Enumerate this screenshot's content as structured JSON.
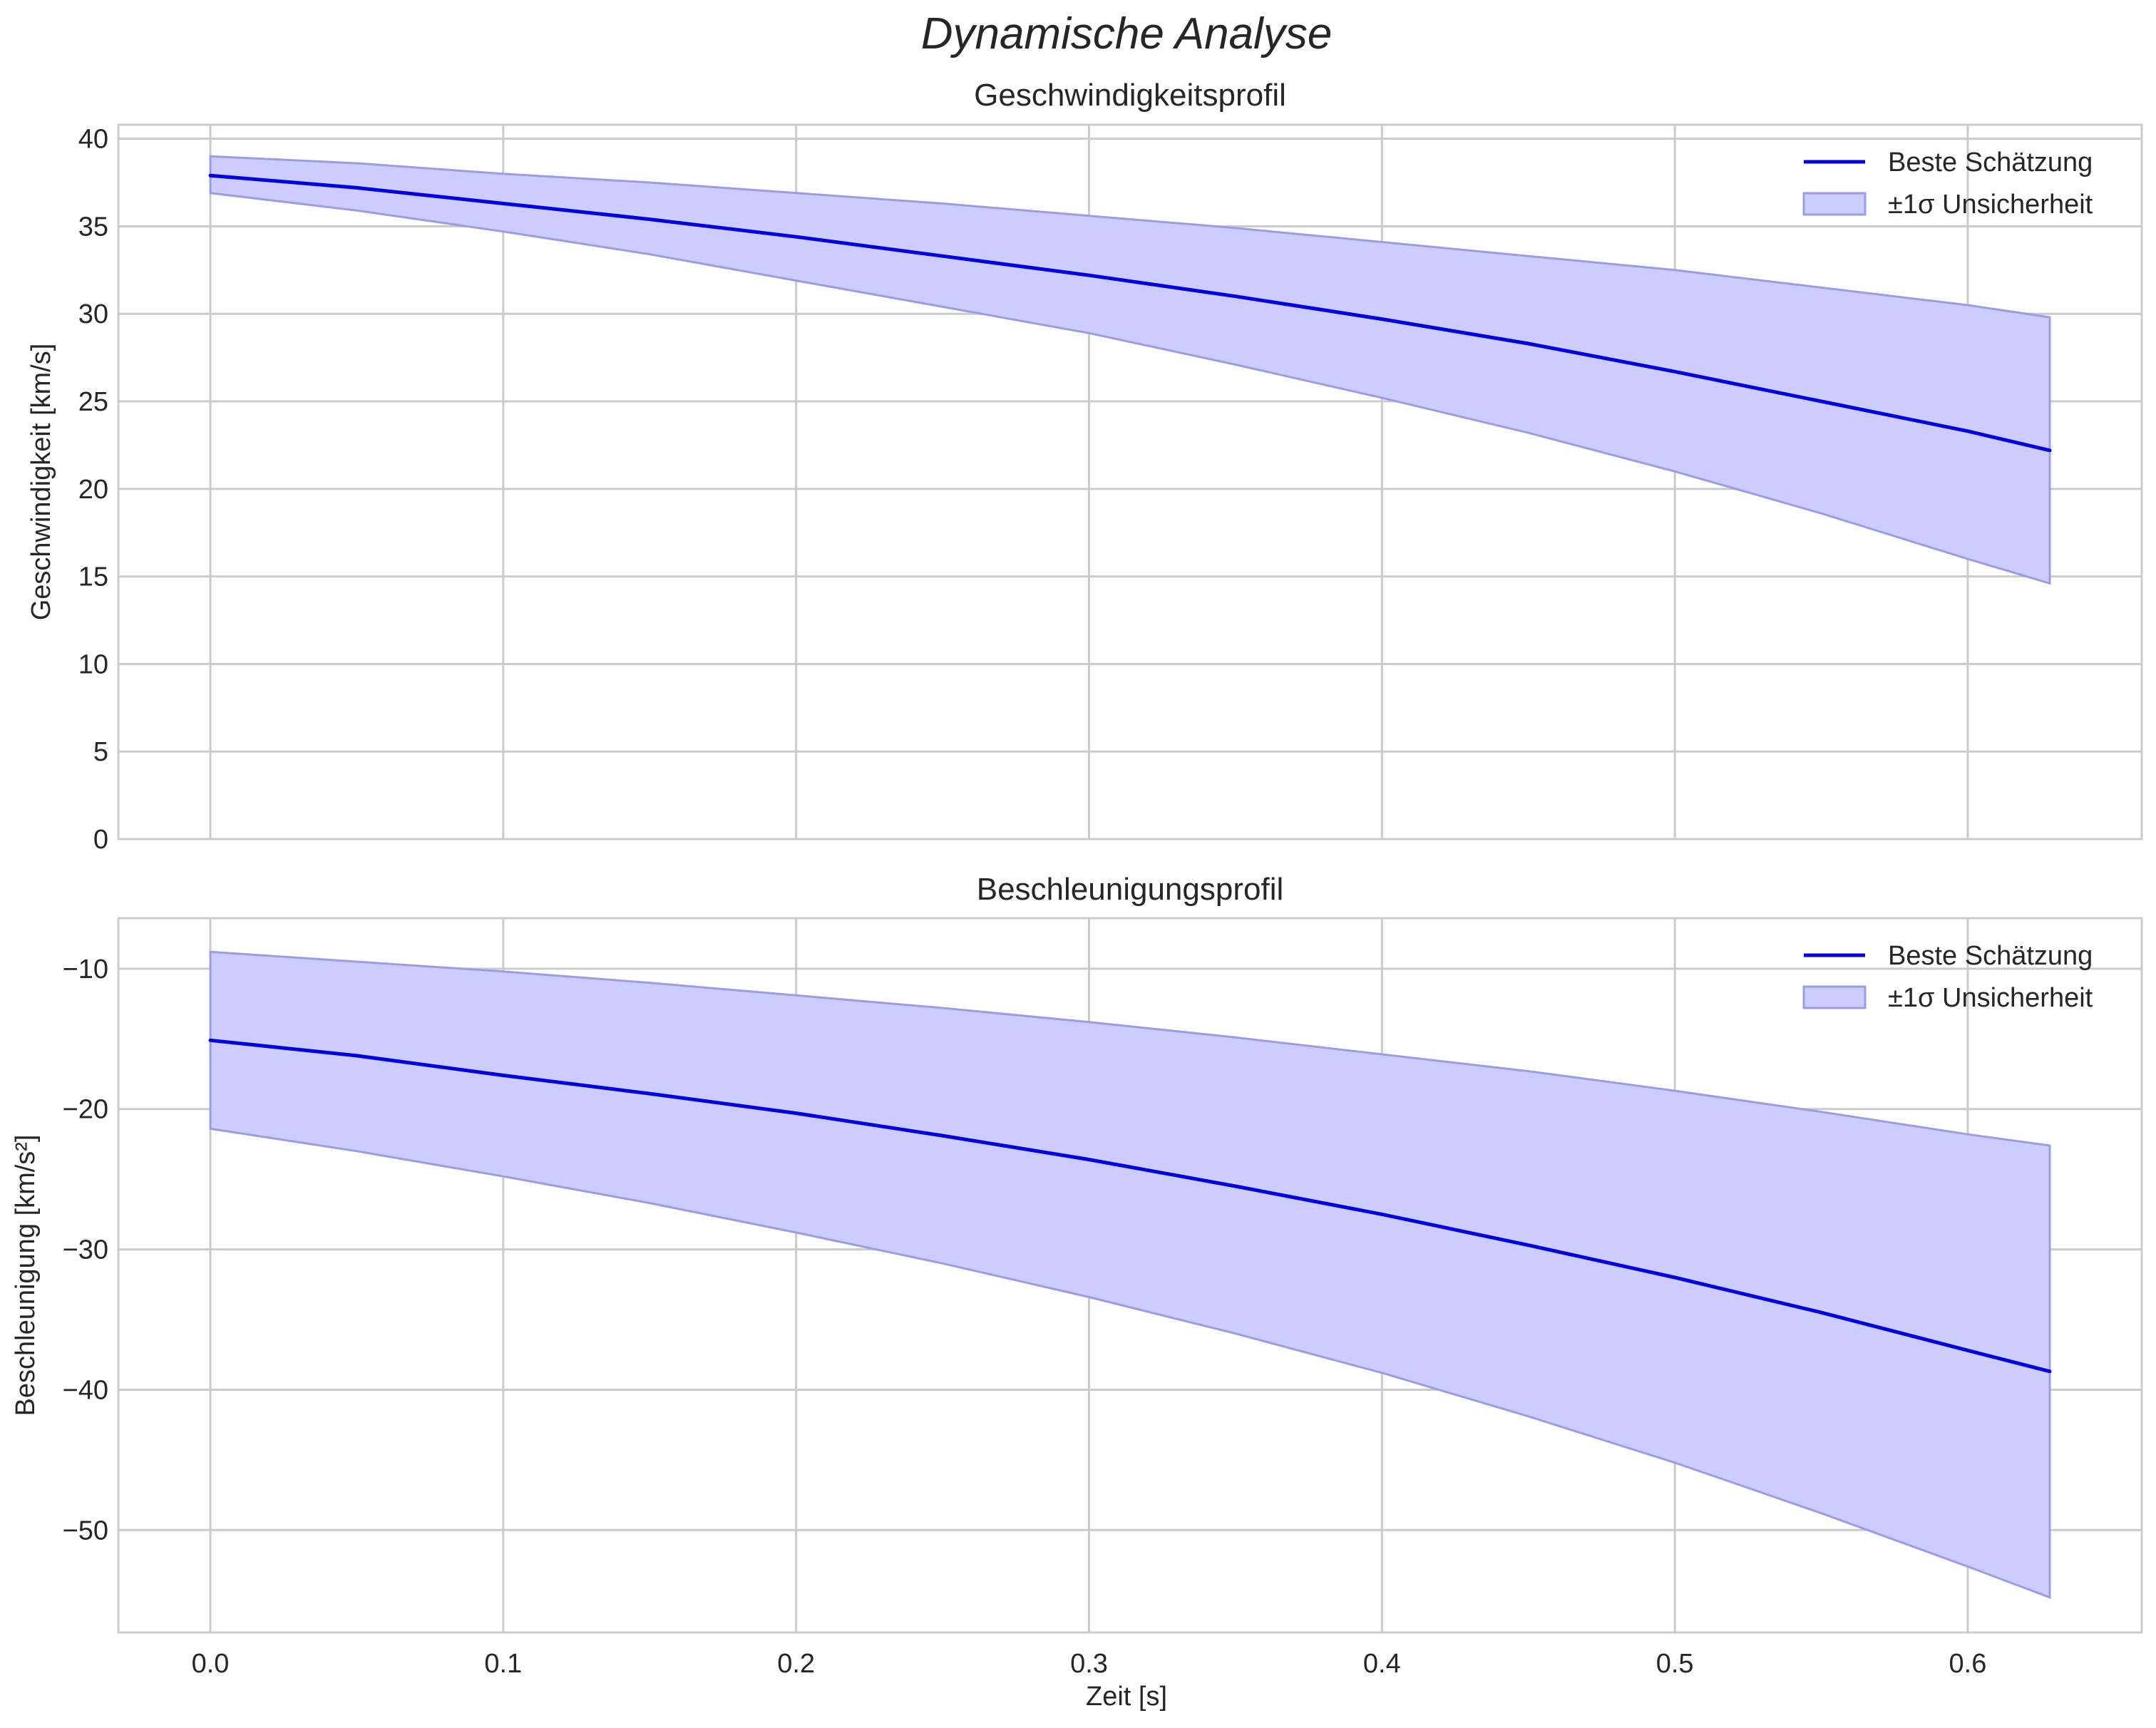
{
  "figure": {
    "suptitle": "Dynamische Analyse",
    "shared_xlabel": "Zeit [s]"
  },
  "colors": {
    "line": "#0000e0",
    "band_fill": "#ccccff",
    "band_edge": "#9c9ce6",
    "grid": "#cbcbcb",
    "frame": "#cccccc",
    "text": "#262626"
  },
  "chart_data": [
    {
      "type": "line",
      "title": "Geschwindigkeitsprofil",
      "xlabel": "",
      "ylabel": "Geschwindigkeit [km/s]",
      "xlim": [
        -0.0314,
        0.6594
      ],
      "ylim": [
        0,
        40.8
      ],
      "x_ticks": [
        0.0,
        0.1,
        0.2,
        0.3,
        0.4,
        0.5,
        0.6
      ],
      "x_tick_labels": [],
      "y_ticks": [
        0,
        5,
        10,
        15,
        20,
        25,
        30,
        35,
        40
      ],
      "y_tick_labels": [
        "0",
        "5",
        "10",
        "15",
        "20",
        "25",
        "30",
        "35",
        "40"
      ],
      "grid": true,
      "legend_position": "top-right",
      "legend": [
        "Beste Schätzung",
        "±1σ Unsicherheit"
      ],
      "x": [
        0.0,
        0.05,
        0.1,
        0.15,
        0.2,
        0.25,
        0.3,
        0.35,
        0.4,
        0.45,
        0.5,
        0.55,
        0.6,
        0.628
      ],
      "series": [
        {
          "name": "Beste Schätzung",
          "values": [
            37.9,
            37.2,
            36.3,
            35.4,
            34.4,
            33.3,
            32.2,
            31.0,
            29.7,
            28.3,
            26.7,
            25.0,
            23.3,
            22.2
          ]
        },
        {
          "name": "±1σ Unsicherheit (unten)",
          "values": [
            36.9,
            35.9,
            34.7,
            33.4,
            31.9,
            30.4,
            28.9,
            27.1,
            25.2,
            23.2,
            21.0,
            18.6,
            16.0,
            14.6
          ]
        },
        {
          "name": "±1σ Unsicherheit (oben)",
          "values": [
            39.0,
            38.6,
            38.0,
            37.5,
            36.9,
            36.3,
            35.6,
            34.9,
            34.1,
            33.3,
            32.5,
            31.5,
            30.5,
            29.8
          ]
        }
      ]
    },
    {
      "type": "line",
      "title": "Beschleunigungsprofil",
      "xlabel": "Zeit [s]",
      "ylabel": "Beschleunigung [km/s²]",
      "xlim": [
        -0.0314,
        0.6594
      ],
      "ylim": [
        -57.3,
        -6.4
      ],
      "x_ticks": [
        0.0,
        0.1,
        0.2,
        0.3,
        0.4,
        0.5,
        0.6
      ],
      "x_tick_labels": [
        "0.0",
        "0.1",
        "0.2",
        "0.3",
        "0.4",
        "0.5",
        "0.6"
      ],
      "y_ticks": [
        -50,
        -40,
        -30,
        -20,
        -10
      ],
      "y_tick_labels": [
        "−50",
        "−40",
        "−30",
        "−20",
        "−10"
      ],
      "grid": true,
      "legend_position": "top-right",
      "legend": [
        "Beste Schätzung",
        "±1σ Unsicherheit"
      ],
      "x": [
        0.0,
        0.05,
        0.1,
        0.15,
        0.2,
        0.25,
        0.3,
        0.35,
        0.4,
        0.45,
        0.5,
        0.55,
        0.6,
        0.628
      ],
      "series": [
        {
          "name": "Beste Schätzung",
          "values": [
            -15.1,
            -16.2,
            -17.6,
            -18.9,
            -20.3,
            -21.9,
            -23.6,
            -25.5,
            -27.5,
            -29.7,
            -32.0,
            -34.5,
            -37.2,
            -38.7
          ]
        },
        {
          "name": "±1σ Unsicherheit (unten)",
          "values": [
            -21.4,
            -23.0,
            -24.8,
            -26.7,
            -28.8,
            -31.0,
            -33.4,
            -36.0,
            -38.8,
            -41.9,
            -45.2,
            -48.8,
            -52.6,
            -54.8
          ]
        },
        {
          "name": "±1σ Unsicherheit (oben)",
          "values": [
            -8.8,
            -9.5,
            -10.2,
            -11.0,
            -11.9,
            -12.8,
            -13.8,
            -14.9,
            -16.1,
            -17.3,
            -18.7,
            -20.2,
            -21.8,
            -22.6
          ]
        }
      ]
    }
  ]
}
